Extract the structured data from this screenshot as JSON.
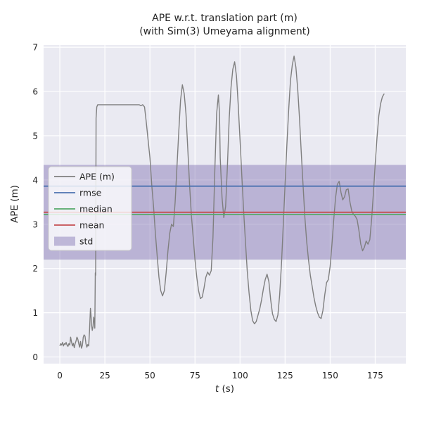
{
  "chart_data": {
    "type": "line",
    "title": "APE w.r.t. translation part (m)",
    "subtitle": "(with Sim(3) Umeyama alignment)",
    "xlabel": "t (s)",
    "xlabel_var": "t",
    "xlabel_rest": " (s)",
    "ylabel": "APE (m)",
    "xlim": [
      -9,
      192
    ],
    "ylim": [
      -0.15,
      7.05
    ],
    "xticks": [
      0,
      25,
      50,
      75,
      100,
      125,
      150,
      175
    ],
    "yticks": [
      0,
      1,
      2,
      3,
      4,
      5,
      6,
      7
    ],
    "grid": true,
    "legend_position": "center-left",
    "colors": {
      "axes_bg": "#eaeaf2",
      "grid": "#ffffff",
      "ape": "#7f7f7f",
      "rmse": "#4c72b0",
      "median": "#55a868",
      "mean": "#c44e52",
      "std": "#8172b2",
      "text": "#262626"
    },
    "stats": {
      "rmse": 3.86,
      "median": 3.22,
      "mean": 3.27,
      "std": 1.07
    },
    "stat_lines": [
      {
        "name": "rmse",
        "color": "#4c72b0",
        "value": 3.86
      },
      {
        "name": "median",
        "color": "#55a868",
        "value": 3.22
      },
      {
        "name": "mean",
        "color": "#c44e52",
        "value": 3.27
      }
    ],
    "band": {
      "name": "std",
      "color": "#8172b2",
      "opacity": 0.45,
      "from": 2.2,
      "to": 4.34
    },
    "legend": {
      "entries": [
        {
          "label": "APE (m)",
          "type": "line",
          "color": "#7f7f7f"
        },
        {
          "label": "rmse",
          "type": "line",
          "color": "#4c72b0"
        },
        {
          "label": "median",
          "type": "line",
          "color": "#55a868"
        },
        {
          "label": "mean",
          "type": "line",
          "color": "#c44e52"
        },
        {
          "label": "std",
          "type": "patch",
          "color": "#8172b2",
          "opacity": 0.45
        }
      ]
    },
    "series": [
      {
        "name": "APE (m)",
        "color": "#7f7f7f",
        "points": [
          [
            0,
            0.25
          ],
          [
            0.5,
            0.3
          ],
          [
            1,
            0.27
          ],
          [
            1.5,
            0.33
          ],
          [
            2,
            0.25
          ],
          [
            2.5,
            0.3
          ],
          [
            3,
            0.28
          ],
          [
            3.5,
            0.33
          ],
          [
            4,
            0.27
          ],
          [
            4.5,
            0.24
          ],
          [
            5,
            0.3
          ],
          [
            5.5,
            0.27
          ],
          [
            6,
            0.45
          ],
          [
            6.5,
            0.34
          ],
          [
            7,
            0.25
          ],
          [
            7.5,
            0.31
          ],
          [
            8,
            0.21
          ],
          [
            8.5,
            0.3
          ],
          [
            9,
            0.36
          ],
          [
            9.5,
            0.45
          ],
          [
            10,
            0.4
          ],
          [
            10.5,
            0.3
          ],
          [
            11,
            0.22
          ],
          [
            11.5,
            0.35
          ],
          [
            12,
            0.2
          ],
          [
            12.5,
            0.26
          ],
          [
            13,
            0.45
          ],
          [
            13.5,
            0.5
          ],
          [
            14,
            0.47
          ],
          [
            14.5,
            0.3
          ],
          [
            15,
            0.22
          ],
          [
            15.5,
            0.28
          ],
          [
            16,
            0.25
          ],
          [
            16.5,
            0.6
          ],
          [
            17,
            1.1
          ],
          [
            17.3,
            0.95
          ],
          [
            17.6,
            0.72
          ],
          [
            18,
            0.6
          ],
          [
            18.4,
            0.68
          ],
          [
            18.8,
            0.9
          ],
          [
            19.1,
            0.85
          ],
          [
            19.4,
            0.65
          ],
          [
            19.7,
            1.9
          ],
          [
            19.9,
            1.85
          ],
          [
            20.1,
            5.4
          ],
          [
            20.5,
            5.65
          ],
          [
            21,
            5.7
          ],
          [
            25,
            5.7
          ],
          [
            30,
            5.7
          ],
          [
            35,
            5.7
          ],
          [
            40,
            5.7
          ],
          [
            44,
            5.7
          ],
          [
            45,
            5.68
          ],
          [
            46,
            5.7
          ],
          [
            47,
            5.65
          ],
          [
            48,
            5.3
          ],
          [
            49,
            4.9
          ],
          [
            50,
            4.5
          ],
          [
            51,
            3.9
          ],
          [
            52,
            3.4
          ],
          [
            53,
            2.8
          ],
          [
            54,
            2.3
          ],
          [
            55,
            1.8
          ],
          [
            56,
            1.5
          ],
          [
            57,
            1.38
          ],
          [
            58,
            1.5
          ],
          [
            59,
            1.9
          ],
          [
            60,
            2.4
          ],
          [
            61,
            2.8
          ],
          [
            62,
            3.0
          ],
          [
            63,
            2.95
          ],
          [
            64,
            3.5
          ],
          [
            65,
            4.3
          ],
          [
            66,
            5.1
          ],
          [
            67,
            5.8
          ],
          [
            68,
            6.15
          ],
          [
            69,
            5.95
          ],
          [
            70,
            5.5
          ],
          [
            71,
            4.7
          ],
          [
            72,
            3.9
          ],
          [
            73,
            3.2
          ],
          [
            74,
            2.7
          ],
          [
            75,
            2.2
          ],
          [
            76,
            1.8
          ],
          [
            77,
            1.5
          ],
          [
            78,
            1.32
          ],
          [
            79,
            1.35
          ],
          [
            80,
            1.55
          ],
          [
            81,
            1.8
          ],
          [
            82,
            1.92
          ],
          [
            83,
            1.85
          ],
          [
            84,
            1.95
          ],
          [
            85,
            2.7
          ],
          [
            86,
            4.2
          ],
          [
            87,
            5.5
          ],
          [
            88,
            5.92
          ],
          [
            88.6,
            5.5
          ],
          [
            89,
            4.5
          ],
          [
            90,
            3.6
          ],
          [
            91,
            3.15
          ],
          [
            92,
            3.4
          ],
          [
            93,
            4.3
          ],
          [
            94,
            5.4
          ],
          [
            95,
            6.1
          ],
          [
            96,
            6.5
          ],
          [
            97,
            6.67
          ],
          [
            98,
            6.35
          ],
          [
            99,
            5.7
          ],
          [
            100,
            4.9
          ],
          [
            101,
            4.1
          ],
          [
            102,
            3.3
          ],
          [
            103,
            2.6
          ],
          [
            104,
            1.95
          ],
          [
            105,
            1.45
          ],
          [
            106,
            1.05
          ],
          [
            107,
            0.82
          ],
          [
            108,
            0.75
          ],
          [
            109,
            0.8
          ],
          [
            110,
            0.95
          ],
          [
            111,
            1.1
          ],
          [
            112,
            1.3
          ],
          [
            113,
            1.55
          ],
          [
            114,
            1.75
          ],
          [
            115,
            1.87
          ],
          [
            116,
            1.7
          ],
          [
            117,
            1.3
          ],
          [
            118,
            0.98
          ],
          [
            119,
            0.85
          ],
          [
            120,
            0.8
          ],
          [
            121,
            0.95
          ],
          [
            122,
            1.4
          ],
          [
            123,
            2.1
          ],
          [
            124,
            3.0
          ],
          [
            125,
            3.9
          ],
          [
            126,
            4.8
          ],
          [
            127,
            5.6
          ],
          [
            128,
            6.25
          ],
          [
            129,
            6.6
          ],
          [
            130,
            6.8
          ],
          [
            131,
            6.55
          ],
          [
            132,
            6.05
          ],
          [
            133,
            5.4
          ],
          [
            134,
            4.6
          ],
          [
            135,
            3.85
          ],
          [
            136,
            3.15
          ],
          [
            137,
            2.6
          ],
          [
            138,
            2.2
          ],
          [
            139,
            1.85
          ],
          [
            140,
            1.6
          ],
          [
            141,
            1.35
          ],
          [
            142,
            1.15
          ],
          [
            143,
            1.0
          ],
          [
            144,
            0.9
          ],
          [
            145,
            0.87
          ],
          [
            146,
            1.05
          ],
          [
            147,
            1.4
          ],
          [
            148,
            1.68
          ],
          [
            149,
            1.75
          ],
          [
            150,
            2.05
          ],
          [
            151,
            2.55
          ],
          [
            152,
            3.1
          ],
          [
            153,
            3.6
          ],
          [
            154,
            3.9
          ],
          [
            155,
            3.97
          ],
          [
            156,
            3.72
          ],
          [
            157,
            3.55
          ],
          [
            158,
            3.62
          ],
          [
            159,
            3.78
          ],
          [
            160,
            3.8
          ],
          [
            161,
            3.5
          ],
          [
            162,
            3.3
          ],
          [
            163,
            3.22
          ],
          [
            164,
            3.18
          ],
          [
            165,
            3.1
          ],
          [
            166,
            2.85
          ],
          [
            167,
            2.55
          ],
          [
            168,
            2.4
          ],
          [
            169,
            2.48
          ],
          [
            170,
            2.62
          ],
          [
            171,
            2.55
          ],
          [
            172,
            2.65
          ],
          [
            173,
            3.1
          ],
          [
            174,
            3.7
          ],
          [
            175,
            4.35
          ],
          [
            176,
            4.95
          ],
          [
            177,
            5.45
          ],
          [
            178,
            5.72
          ],
          [
            179,
            5.88
          ],
          [
            180,
            5.95
          ]
        ]
      }
    ]
  }
}
